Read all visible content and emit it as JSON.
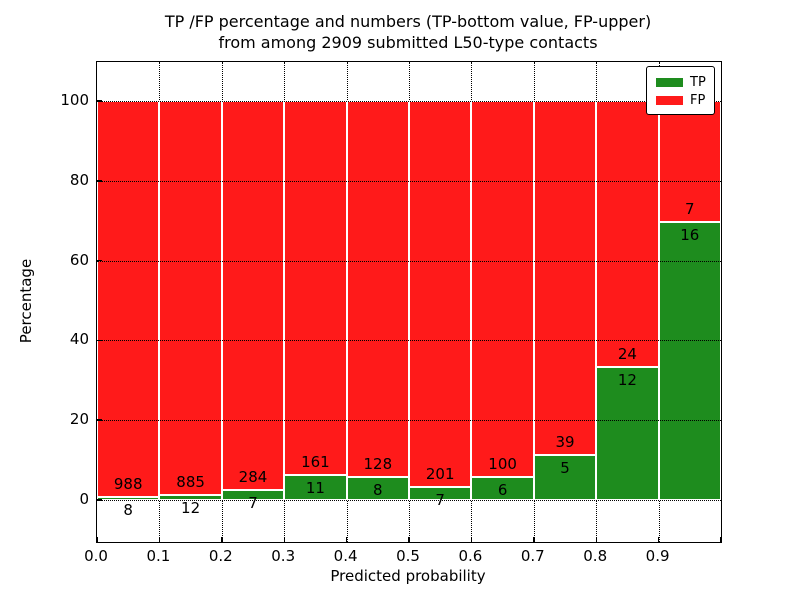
{
  "figure": {
    "title_line1": "TP /FP percentage and numbers (TP-bottom value, FP-upper)",
    "title_line2": "from among 2909 submitted L50-type contacts"
  },
  "chart_data": {
    "type": "bar",
    "stacking": "percentage-stacked",
    "title": "TP /FP percentage and numbers (TP-bottom value, FP-upper) from among 2909 submitted L50-type contacts",
    "xlabel": "Predicted probability",
    "ylabel": "Percentage",
    "total_contacts_shown_in_title": 2909,
    "x_tick_labels": [
      "0.0",
      "0.1",
      "0.2",
      "0.3",
      "0.4",
      "0.5",
      "0.6",
      "0.7",
      "0.8",
      "0.9"
    ],
    "y_tick_values": [
      0,
      20,
      40,
      60,
      80,
      100
    ],
    "xlim": [
      0.0,
      1.0
    ],
    "ylim": [
      -10.5,
      109.8
    ],
    "grid": "dotted",
    "bin_width": 0.1,
    "bins": [
      {
        "x_start": 0.0,
        "tp": 8,
        "fp": 988
      },
      {
        "x_start": 0.1,
        "tp": 12,
        "fp": 885
      },
      {
        "x_start": 0.2,
        "tp": 7,
        "fp": 284
      },
      {
        "x_start": 0.3,
        "tp": 11,
        "fp": 161
      },
      {
        "x_start": 0.4,
        "tp": 8,
        "fp": 128
      },
      {
        "x_start": 0.5,
        "tp": 7,
        "fp": 201
      },
      {
        "x_start": 0.6,
        "tp": 6,
        "fp": 100
      },
      {
        "x_start": 0.7,
        "tp": 5,
        "fp": 39
      },
      {
        "x_start": 0.8,
        "tp": 12,
        "fp": 24
      },
      {
        "x_start": 0.9,
        "tp": 16,
        "fp": 7
      }
    ],
    "legend": {
      "position": "upper-right",
      "entries": [
        {
          "label": "TP",
          "color": "#1e8c1e"
        },
        {
          "label": "FP",
          "color": "#ff1a1a"
        }
      ]
    },
    "colors": {
      "tp": "#1e8c1e",
      "fp": "#ff1a1a",
      "bar_edge": "#ffffff",
      "grid": "#000000",
      "text": "#000000"
    }
  }
}
